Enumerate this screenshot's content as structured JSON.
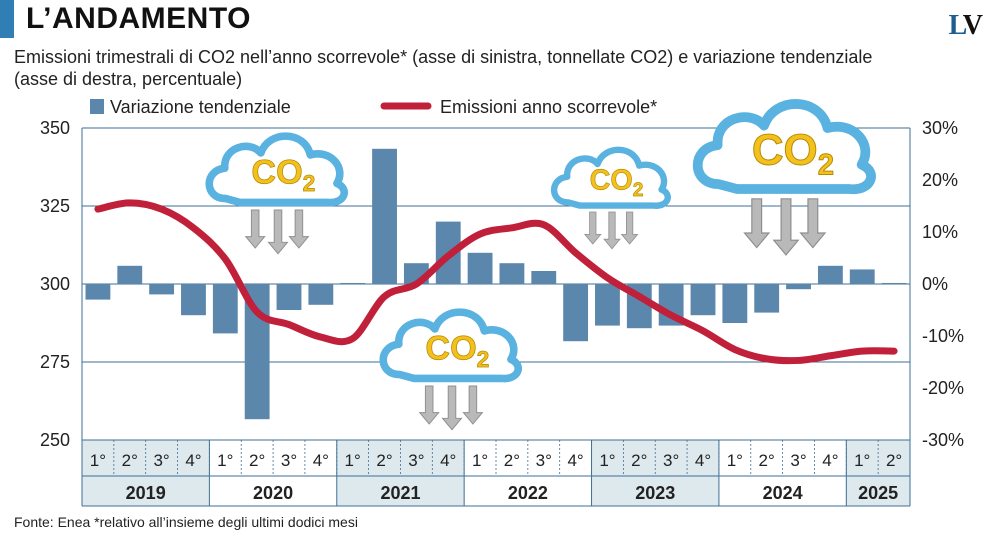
{
  "header": {
    "title": "L’ANDAMENTO",
    "subtitle": "Emissioni trimestrali di CO2 nell’anno scorrevole* (asse di sinistra, tonnellate CO2) e variazione tendenziale (asse di destra, percentuale)",
    "logo_l": "L",
    "logo_v": "V"
  },
  "footer": {
    "source": "Fonte: Enea  *relativo all’insieme degli ultimi dodici mesi"
  },
  "colors": {
    "bar": "#5b87ad",
    "line": "#c0203a",
    "grid": "#3f6f96",
    "band": "#dde9ec",
    "cloud_outline": "#5ab2e0",
    "co2_text": "#f2c11d"
  },
  "clouds": [
    {
      "label": "CO",
      "sub": "2"
    },
    {
      "label": "CO",
      "sub": "2"
    },
    {
      "label": "CO",
      "sub": "2"
    },
    {
      "label": "CO",
      "sub": "2"
    }
  ],
  "chart_data": {
    "type": "bar+line",
    "legend": {
      "bars": "Variazione tendenziale",
      "line": "Emissioni anno scorrevole*",
      "placement": "top"
    },
    "categories": [
      "1°",
      "2°",
      "3°",
      "4°",
      "1°",
      "2°",
      "3°",
      "4°",
      "1°",
      "2°",
      "3°",
      "4°",
      "1°",
      "2°",
      "3°",
      "4°",
      "1°",
      "2°",
      "3°",
      "4°",
      "1°",
      "2°",
      "3°",
      "4°",
      "1°",
      "2°"
    ],
    "years": [
      {
        "label": "2019",
        "quarters": 4
      },
      {
        "label": "2020",
        "quarters": 4
      },
      {
        "label": "2021",
        "quarters": 4
      },
      {
        "label": "2022",
        "quarters": 4
      },
      {
        "label": "2023",
        "quarters": 4
      },
      {
        "label": "2024",
        "quarters": 4
      },
      {
        "label": "2025",
        "quarters": 2
      }
    ],
    "y_left": {
      "min": 250,
      "max": 350,
      "ticks": [
        250,
        275,
        300,
        325,
        350
      ]
    },
    "y_right": {
      "min": -30,
      "max": 30,
      "ticks": [
        -30,
        -20,
        -10,
        0,
        10,
        20,
        30
      ],
      "tick_labels": [
        "-30%",
        "-20%",
        "-10%",
        "0%",
        "10%",
        "20%",
        "30%"
      ]
    },
    "series": [
      {
        "name": "Variazione tendenziale",
        "type": "bar",
        "axis": "right",
        "values": [
          -3,
          3.5,
          -2,
          -6,
          -9.5,
          -26,
          -5,
          -4,
          0.2,
          26,
          4,
          12,
          6,
          4,
          2.5,
          -11,
          -8,
          -8.5,
          -8,
          -6,
          -7.5,
          -5.5,
          -1,
          3.5,
          2.8,
          0.2
        ]
      },
      {
        "name": "Emissioni anno scorrevole*",
        "type": "line",
        "axis": "left",
        "values": [
          324,
          326,
          324,
          318,
          308,
          291,
          287,
          283,
          282.5,
          296,
          300,
          309,
          316,
          318,
          319,
          310,
          302,
          296,
          290,
          285,
          279,
          276,
          275.5,
          277,
          278.5,
          278.5
        ]
      }
    ],
    "grid": true
  }
}
